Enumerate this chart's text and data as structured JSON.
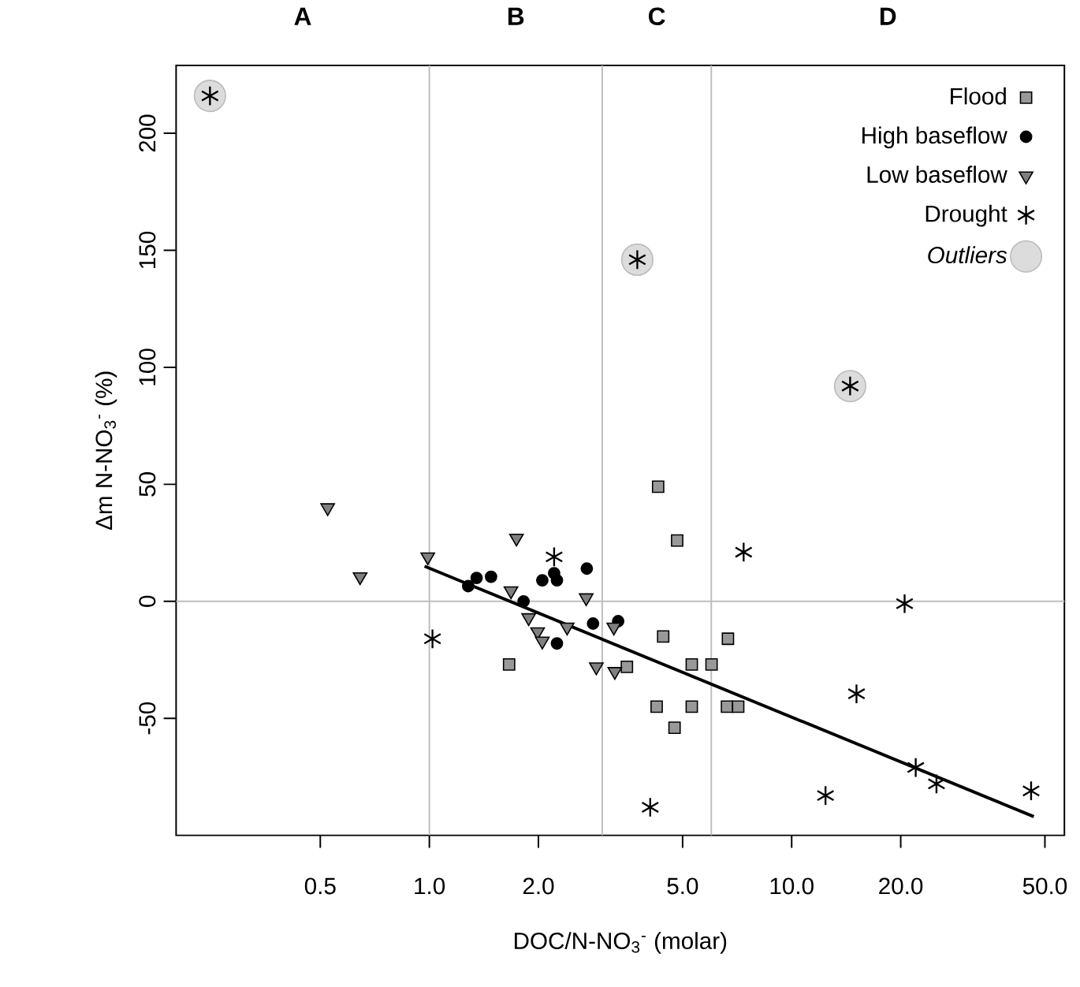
{
  "chart_data": {
    "type": "scatter",
    "xlabel": "DOC/N-NO$_{3}$$^{-}$ (molar)",
    "ylabel": "Δm N-NO$_{3}$$^{-}$ (%)",
    "log": "x",
    "xlim": [
      0.2,
      56.6
    ],
    "ylim": [
      -100,
      229
    ],
    "xticks": [
      {
        "value": 0.5,
        "label": "0.5"
      },
      {
        "value": 1,
        "label": "1.0"
      },
      {
        "value": 2,
        "label": "2.0"
      },
      {
        "value": 5,
        "label": "5.0"
      },
      {
        "value": 10,
        "label": "10.0"
      },
      {
        "value": 20,
        "label": "20.0"
      },
      {
        "value": 50,
        "label": "50.0"
      }
    ],
    "yticks": [
      -50,
      0,
      50,
      100,
      150,
      200
    ],
    "legend": "top right",
    "series": [
      {
        "name": "Outliers",
        "color": "#dcdcdc",
        "marker": "circle",
        "x": [
          0.248,
          3.75,
          14.5
        ],
        "values": [
          216,
          146,
          92
        ]
      },
      {
        "name": "Flood",
        "color": "#999999",
        "marker": "square",
        "x": [
          1.66,
          3.51,
          4.28,
          4.83,
          4.42,
          6.67,
          5.3,
          6.01,
          4.24,
          5.3,
          6.63,
          7.12,
          4.75
        ],
        "values": [
          -27,
          -28,
          49,
          26,
          -15,
          -16,
          -27,
          -27,
          -45,
          -45,
          -45,
          -45,
          -54
        ]
      },
      {
        "name": "High baseflow",
        "color": "#000000",
        "marker": "circle",
        "x": [
          1.28,
          1.35,
          1.48,
          1.82,
          2.05,
          2.21,
          2.25,
          2.25,
          2.72,
          2.83,
          3.32
        ],
        "values": [
          6.5,
          10,
          10.5,
          0,
          9,
          12,
          9,
          -18,
          14,
          -9.5,
          -8.5
        ]
      },
      {
        "name": "Low baseflow",
        "color": "#808080",
        "marker": "triangle",
        "x": [
          0.524,
          0.644,
          0.99,
          1.74,
          1.68,
          1.88,
          1.99,
          2.05,
          2.4,
          2.71,
          2.89,
          3.25,
          3.23
        ],
        "values": [
          40,
          10.5,
          19,
          27,
          4.5,
          -7,
          -13,
          -17,
          -11,
          1.5,
          -28,
          -30,
          -11
        ]
      },
      {
        "name": "Drought",
        "color": "#000000",
        "marker": "cross",
        "x": [
          0.248,
          3.75,
          14.5,
          1.02,
          2.21,
          7.37,
          20.5,
          15.1,
          4.07,
          12.4,
          22.0,
          25.1,
          45.8
        ],
        "values": [
          216,
          146,
          92,
          -16,
          19,
          21,
          -1,
          -39.5,
          -88,
          -83,
          -71,
          -78,
          -81
        ]
      },
      {
        "type": "line",
        "color": "#000000",
        "x": [
          0.97,
          46.6
        ],
        "values": [
          15,
          -92
        ]
      }
    ],
    "ref_lines": [
      {
        "axis": "x",
        "value": 1,
        "color": "#bebebe"
      },
      {
        "axis": "x",
        "value": 3,
        "color": "#bebebe"
      },
      {
        "axis": "x",
        "value": 6,
        "color": "#bebebe"
      },
      {
        "axis": "y",
        "value": 0,
        "color": "#bebebe"
      }
    ],
    "annotations": [
      "A",
      "B",
      "C",
      "D"
    ]
  }
}
